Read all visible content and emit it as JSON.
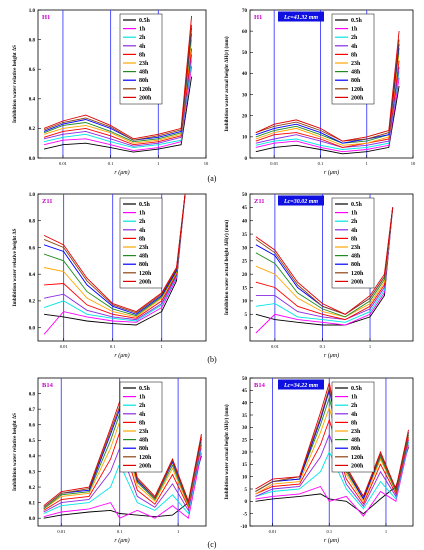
{
  "captions": [
    "(a)",
    "(b)",
    "(c)"
  ],
  "legend_labels": [
    "0.5h",
    "1h",
    "2h",
    "4h",
    "8h",
    "23h",
    "48h",
    "80h",
    "120h",
    "200h"
  ],
  "series_colors": [
    "#000000",
    "#ff00ff",
    "#00e5e5",
    "#8a2be2",
    "#ff0000",
    "#ffa500",
    "#228b22",
    "#0000ff",
    "#8b4513",
    "#e00000"
  ],
  "ref_line_color": "#4040ff",
  "chart_data": [
    {
      "type": "line",
      "panel": "a-left",
      "sample_label": "H1",
      "badge": "",
      "xlabel": "r  (μm)",
      "ylabel": "Imbibition water relative height ΔS",
      "xscale": "log",
      "xlim": [
        0.003,
        10
      ],
      "ylim": [
        0,
        1.0
      ],
      "xticks": [
        "0.01",
        "0.1",
        "1",
        "10"
      ],
      "yticks": [
        "0.0",
        "0.2",
        "0.4",
        "0.6",
        "0.8",
        "1.0"
      ],
      "reference_lines_x": [
        0.01,
        0.1,
        1
      ],
      "series_x": [
        0.004,
        0.01,
        0.03,
        0.1,
        0.3,
        1,
        3,
        5
      ],
      "series": [
        {
          "name": "0.5h",
          "values": [
            0.06,
            0.09,
            0.1,
            0.07,
            0.04,
            0.06,
            0.09,
            0.55
          ]
        },
        {
          "name": "1h",
          "values": [
            0.09,
            0.12,
            0.13,
            0.09,
            0.05,
            0.07,
            0.11,
            0.62
          ]
        },
        {
          "name": "2h",
          "values": [
            0.11,
            0.14,
            0.16,
            0.11,
            0.07,
            0.09,
            0.12,
            0.66
          ]
        },
        {
          "name": "4h",
          "values": [
            0.13,
            0.16,
            0.18,
            0.13,
            0.08,
            0.1,
            0.14,
            0.7
          ]
        },
        {
          "name": "8h",
          "values": [
            0.14,
            0.18,
            0.2,
            0.15,
            0.09,
            0.11,
            0.15,
            0.74
          ]
        },
        {
          "name": "23h",
          "values": [
            0.16,
            0.2,
            0.22,
            0.17,
            0.1,
            0.12,
            0.16,
            0.8
          ]
        },
        {
          "name": "48h",
          "values": [
            0.17,
            0.22,
            0.24,
            0.18,
            0.11,
            0.13,
            0.17,
            0.84
          ]
        },
        {
          "name": "80h",
          "values": [
            0.18,
            0.23,
            0.26,
            0.2,
            0.12,
            0.14,
            0.18,
            0.88
          ]
        },
        {
          "name": "120h",
          "values": [
            0.19,
            0.24,
            0.27,
            0.21,
            0.12,
            0.15,
            0.19,
            0.9
          ]
        },
        {
          "name": "200h",
          "values": [
            0.2,
            0.25,
            0.29,
            0.22,
            0.13,
            0.16,
            0.2,
            0.96
          ]
        }
      ]
    },
    {
      "type": "line",
      "panel": "a-right",
      "sample_label": "H1",
      "badge": "Lc=41.32 mm",
      "xlabel": "r  (μm)",
      "ylabel": "Imbibition water actual height ΔH(r)  (mm)",
      "xscale": "log",
      "xlim": [
        0.003,
        10
      ],
      "ylim": [
        0,
        70
      ],
      "xticks": [
        "0.01",
        "0.1",
        "1",
        "10"
      ],
      "yticks": [
        "0",
        "10",
        "20",
        "30",
        "40",
        "50",
        "60",
        "70"
      ],
      "reference_lines_x": [
        0.01,
        0.1,
        1
      ],
      "series_x": [
        0.004,
        0.01,
        0.03,
        0.1,
        0.3,
        1,
        3,
        5
      ],
      "series": [
        {
          "name": "0.5h",
          "values": [
            3,
            5,
            6,
            4,
            2,
            3,
            5,
            34
          ]
        },
        {
          "name": "1h",
          "values": [
            5,
            7,
            8,
            5,
            3,
            4,
            6,
            38
          ]
        },
        {
          "name": "2h",
          "values": [
            6,
            8,
            9,
            6,
            4,
            5,
            7,
            41
          ]
        },
        {
          "name": "4h",
          "values": [
            7,
            9,
            11,
            8,
            5,
            6,
            8,
            43
          ]
        },
        {
          "name": "8h",
          "values": [
            8,
            11,
            12,
            9,
            5,
            7,
            9,
            46
          ]
        },
        {
          "name": "23h",
          "values": [
            9,
            12,
            14,
            10,
            6,
            7,
            10,
            50
          ]
        },
        {
          "name": "48h",
          "values": [
            10,
            13,
            15,
            11,
            7,
            8,
            11,
            52
          ]
        },
        {
          "name": "80h",
          "values": [
            11,
            14,
            16,
            12,
            7,
            9,
            11,
            54
          ]
        },
        {
          "name": "120h",
          "values": [
            12,
            15,
            17,
            13,
            8,
            9,
            12,
            56
          ]
        },
        {
          "name": "200h",
          "values": [
            12,
            16,
            18,
            14,
            8,
            10,
            13,
            60
          ]
        }
      ]
    },
    {
      "type": "line",
      "panel": "b-left",
      "sample_label": "Z11",
      "badge": "",
      "xlabel": "r  (μm)",
      "ylabel": "Imbibition water relative height ΔS",
      "xscale": "log",
      "xlim": [
        0.003,
        8
      ],
      "ylim": [
        -0.1,
        1.0
      ],
      "xticks": [
        "0.01",
        "0.1",
        "1"
      ],
      "yticks": [
        "0.0",
        "0.2",
        "0.4",
        "0.6",
        "0.8",
        "1.0"
      ],
      "reference_lines_x": [
        0.01,
        0.1,
        1
      ],
      "series_x": [
        0.004,
        0.01,
        0.03,
        0.1,
        0.3,
        1,
        2,
        3
      ],
      "series": [
        {
          "name": "0.5h",
          "values": [
            0.1,
            0.08,
            0.05,
            0.03,
            0.02,
            0.12,
            0.35,
            1.0
          ]
        },
        {
          "name": "1h",
          "values": [
            -0.05,
            0.12,
            0.08,
            0.05,
            0.04,
            0.15,
            0.37,
            1.0
          ]
        },
        {
          "name": "2h",
          "values": [
            0.15,
            0.2,
            0.1,
            0.07,
            0.05,
            0.17,
            0.38,
            1.0
          ]
        },
        {
          "name": "4h",
          "values": [
            0.22,
            0.25,
            0.13,
            0.08,
            0.06,
            0.18,
            0.39,
            1.0
          ]
        },
        {
          "name": "8h",
          "values": [
            0.32,
            0.33,
            0.17,
            0.1,
            0.07,
            0.2,
            0.4,
            1.0
          ]
        },
        {
          "name": "23h",
          "values": [
            0.45,
            0.42,
            0.22,
            0.12,
            0.08,
            0.22,
            0.41,
            1.0
          ]
        },
        {
          "name": "48h",
          "values": [
            0.55,
            0.5,
            0.27,
            0.14,
            0.09,
            0.23,
            0.42,
            1.0
          ]
        },
        {
          "name": "80h",
          "values": [
            0.62,
            0.57,
            0.32,
            0.16,
            0.1,
            0.24,
            0.43,
            1.0
          ]
        },
        {
          "name": "120h",
          "values": [
            0.66,
            0.6,
            0.35,
            0.17,
            0.11,
            0.25,
            0.44,
            1.0
          ]
        },
        {
          "name": "200h",
          "values": [
            0.69,
            0.62,
            0.37,
            0.18,
            0.12,
            0.26,
            0.45,
            1.0
          ]
        }
      ]
    },
    {
      "type": "line",
      "panel": "b-right",
      "sample_label": "Z11",
      "badge": "Lc=30.02 mm",
      "xlabel": "r  (μm)",
      "ylabel": "Imbibition water actual height ΔH(r)  (mm)",
      "xscale": "log",
      "xlim": [
        0.003,
        8
      ],
      "ylim": [
        -5,
        50
      ],
      "xticks": [
        "0.01",
        "0.1",
        "1"
      ],
      "yticks": [
        "0",
        "5",
        "10",
        "15",
        "20",
        "25",
        "30",
        "35",
        "40",
        "45",
        "50"
      ],
      "reference_lines_x": [
        0.01,
        0.1,
        1
      ],
      "series_x": [
        0.004,
        0.01,
        0.03,
        0.1,
        0.3,
        1,
        2,
        3
      ],
      "series": [
        {
          "name": "0.5h",
          "values": [
            5,
            3,
            2,
            1,
            1,
            4,
            12,
            45
          ]
        },
        {
          "name": "1h",
          "values": [
            -2,
            5,
            3,
            2,
            1,
            5,
            13,
            45
          ]
        },
        {
          "name": "2h",
          "values": [
            8,
            9,
            4,
            3,
            2,
            6,
            14,
            45
          ]
        },
        {
          "name": "4h",
          "values": [
            12,
            12,
            6,
            4,
            3,
            7,
            15,
            45
          ]
        },
        {
          "name": "8h",
          "values": [
            17,
            15,
            8,
            5,
            3,
            8,
            16,
            45
          ]
        },
        {
          "name": "23h",
          "values": [
            23,
            20,
            11,
            6,
            4,
            9,
            17,
            45
          ]
        },
        {
          "name": "48h",
          "values": [
            28,
            24,
            13,
            7,
            4,
            10,
            18,
            45
          ]
        },
        {
          "name": "80h",
          "values": [
            31,
            27,
            15,
            8,
            5,
            11,
            19,
            45
          ]
        },
        {
          "name": "120h",
          "values": [
            33,
            28,
            16,
            8,
            5,
            11,
            19,
            45
          ]
        },
        {
          "name": "200h",
          "values": [
            34,
            29,
            17,
            9,
            5,
            12,
            20,
            45
          ]
        }
      ]
    },
    {
      "type": "line",
      "panel": "c-left",
      "sample_label": "B14",
      "badge": "",
      "xlabel": "r  (μm)",
      "ylabel": "Imbibition water relative height ΔS",
      "xscale": "log",
      "xlim": [
        0.004,
        3
      ],
      "ylim": [
        -0.05,
        0.9
      ],
      "xticks": [
        "0.01",
        "0.1",
        "1"
      ],
      "yticks": [
        "0.0",
        "0.1",
        "0.2",
        "0.3",
        "0.4",
        "0.5",
        "0.6",
        "0.7",
        "0.8"
      ],
      "reference_lines_x": [
        0.01,
        0.1,
        1
      ],
      "series_x": [
        0.005,
        0.01,
        0.03,
        0.07,
        0.1,
        0.2,
        0.4,
        0.8,
        1.5,
        2.5
      ],
      "series": [
        {
          "name": "0.5h",
          "values": [
            0.0,
            0.02,
            0.04,
            0.05,
            0.03,
            0.02,
            0.01,
            0.02,
            0.1,
            0.4
          ]
        },
        {
          "name": "1h",
          "values": [
            0.01,
            0.04,
            0.06,
            0.1,
            0.0,
            0.05,
            0.0,
            0.08,
            0.0,
            0.42
          ]
        },
        {
          "name": "2h",
          "values": [
            0.03,
            0.08,
            0.1,
            0.2,
            0.35,
            0.1,
            0.05,
            0.15,
            0.03,
            0.45
          ]
        },
        {
          "name": "4h",
          "values": [
            0.04,
            0.1,
            0.12,
            0.3,
            0.45,
            0.14,
            0.07,
            0.22,
            0.05,
            0.47
          ]
        },
        {
          "name": "8h",
          "values": [
            0.05,
            0.12,
            0.14,
            0.38,
            0.55,
            0.18,
            0.09,
            0.28,
            0.07,
            0.49
          ]
        },
        {
          "name": "23h",
          "values": [
            0.06,
            0.14,
            0.16,
            0.45,
            0.62,
            0.21,
            0.11,
            0.32,
            0.08,
            0.5
          ]
        },
        {
          "name": "48h",
          "values": [
            0.06,
            0.15,
            0.17,
            0.5,
            0.67,
            0.23,
            0.12,
            0.34,
            0.09,
            0.51
          ]
        },
        {
          "name": "80h",
          "values": [
            0.07,
            0.16,
            0.18,
            0.54,
            0.7,
            0.24,
            0.13,
            0.36,
            0.1,
            0.52
          ]
        },
        {
          "name": "120h",
          "values": [
            0.07,
            0.16,
            0.19,
            0.56,
            0.72,
            0.25,
            0.13,
            0.37,
            0.1,
            0.53
          ]
        },
        {
          "name": "200h",
          "values": [
            0.08,
            0.17,
            0.2,
            0.58,
            0.75,
            0.26,
            0.14,
            0.38,
            0.11,
            0.54
          ]
        }
      ]
    },
    {
      "type": "line",
      "panel": "c-right",
      "sample_label": "B14",
      "badge": "Lc=34.22 mm",
      "xlabel": "r  (μm)",
      "ylabel": "Imbibition water actual height ΔH(r)  (mm)",
      "xscale": "log",
      "xlim": [
        0.004,
        3
      ],
      "ylim": [
        -10,
        50
      ],
      "xticks": [
        "0.01",
        "0.1",
        "1"
      ],
      "yticks": [
        "-10",
        "-5",
        "0",
        "5",
        "10",
        "15",
        "20",
        "25",
        "30",
        "35",
        "40",
        "45",
        "50"
      ],
      "reference_lines_x": [
        0.01,
        0.1,
        1
      ],
      "series_x": [
        0.005,
        0.01,
        0.03,
        0.07,
        0.1,
        0.2,
        0.4,
        0.8,
        1.5,
        2.5
      ],
      "series": [
        {
          "name": "0.5h",
          "values": [
            0,
            1,
            2,
            3,
            1,
            0,
            -5,
            1,
            6,
            22
          ]
        },
        {
          "name": "1h",
          "values": [
            1,
            2,
            3,
            6,
            0,
            2,
            -6,
            4,
            0,
            23
          ]
        },
        {
          "name": "2h",
          "values": [
            2,
            4,
            5,
            12,
            20,
            5,
            -3,
            8,
            1,
            24
          ]
        },
        {
          "name": "4h",
          "values": [
            2,
            5,
            6,
            18,
            27,
            7,
            -2,
            12,
            2,
            25
          ]
        },
        {
          "name": "8h",
          "values": [
            3,
            6,
            7,
            23,
            33,
            9,
            -1,
            15,
            3,
            26
          ]
        },
        {
          "name": "23h",
          "values": [
            3,
            7,
            8,
            28,
            38,
            11,
            0,
            17,
            4,
            27
          ]
        },
        {
          "name": "48h",
          "values": [
            4,
            8,
            9,
            31,
            42,
            12,
            1,
            18,
            4,
            27
          ]
        },
        {
          "name": "80h",
          "values": [
            4,
            8,
            9,
            33,
            45,
            13,
            1,
            19,
            5,
            28
          ]
        },
        {
          "name": "120h",
          "values": [
            4,
            8,
            10,
            34,
            46,
            13,
            2,
            19,
            5,
            28
          ]
        },
        {
          "name": "200h",
          "values": [
            5,
            9,
            10,
            36,
            48,
            14,
            2,
            20,
            5,
            29
          ]
        }
      ]
    }
  ]
}
